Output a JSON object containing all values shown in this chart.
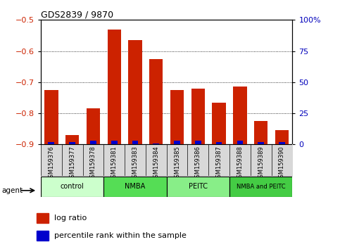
{
  "title": "GDS2839 / 9870",
  "samples": [
    "GSM159376",
    "GSM159377",
    "GSM159378",
    "GSM159381",
    "GSM159383",
    "GSM159384",
    "GSM159385",
    "GSM159386",
    "GSM159387",
    "GSM159388",
    "GSM159389",
    "GSM159390"
  ],
  "log_ratio": [
    -0.725,
    -0.87,
    -0.785,
    -0.53,
    -0.565,
    -0.625,
    -0.725,
    -0.72,
    -0.765,
    -0.715,
    -0.825,
    -0.855
  ],
  "pct_rank": [
    2,
    2,
    3,
    3,
    3,
    1,
    3,
    3,
    2,
    3,
    2,
    2
  ],
  "groups": [
    {
      "label": "control",
      "start": 0,
      "end": 3,
      "color": "#ccffcc"
    },
    {
      "label": "NMBA",
      "start": 3,
      "end": 6,
      "color": "#55dd55"
    },
    {
      "label": "PEITC",
      "start": 6,
      "end": 9,
      "color": "#88ee88"
    },
    {
      "label": "NMBA and PEITC",
      "start": 9,
      "end": 12,
      "color": "#44cc44"
    }
  ],
  "ylim_left": [
    -0.9,
    -0.5
  ],
  "ylim_right": [
    0,
    100
  ],
  "yticks_left": [
    -0.9,
    -0.8,
    -0.7,
    -0.6,
    -0.5
  ],
  "yticks_right": [
    0,
    25,
    50,
    75,
    100
  ],
  "ytick_labels_right": [
    "0",
    "25",
    "50",
    "75",
    "100%"
  ],
  "bar_color_red": "#cc2200",
  "bar_color_blue": "#0000cc",
  "grid_color": "#000000",
  "left_tick_color": "#cc2200",
  "right_tick_color": "#0000bb"
}
